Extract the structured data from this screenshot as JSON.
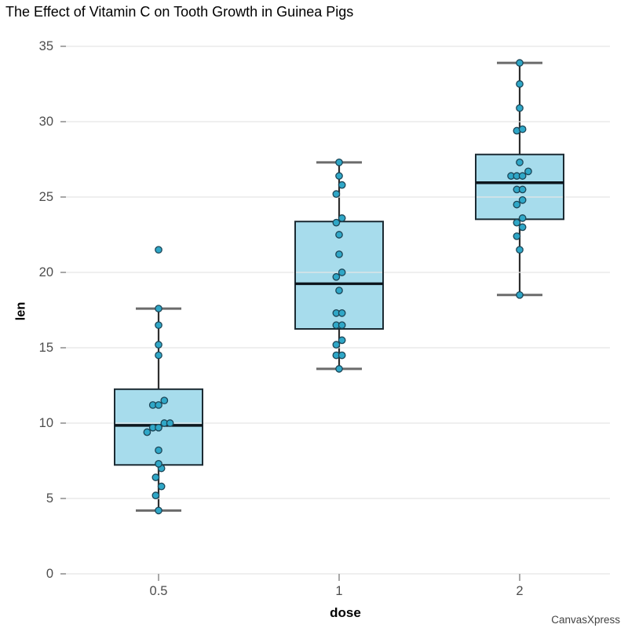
{
  "chart_data": {
    "type": "boxplot",
    "library": "CanvasXpress",
    "title": "The Effect of Vitamin C on Tooth Growth in Guinea Pigs",
    "xlabel": "dose",
    "ylabel": "len",
    "watermark": "CanvasXpress",
    "grid": true,
    "ylim": [
      0,
      35
    ],
    "y_ticks": [
      "0",
      "5",
      "10",
      "15",
      "20",
      "25",
      "30",
      "35"
    ],
    "x_categories": [
      "0.5",
      "1",
      "2"
    ],
    "groups": [
      {
        "label": "0.5",
        "points": [
          4.2,
          5.2,
          5.8,
          6.4,
          7.0,
          7.3,
          8.2,
          9.4,
          9.7,
          9.7,
          10.0,
          10.0,
          11.2,
          11.2,
          11.5,
          14.5,
          15.2,
          16.5,
          17.6,
          21.5
        ],
        "stats": {
          "whisker_low": 4.2,
          "q1": 7.225,
          "median": 9.85,
          "q3": 12.25,
          "whisker_high": 17.6,
          "outliers": [
            21.5
          ]
        }
      },
      {
        "label": "1",
        "points": [
          13.6,
          14.5,
          14.5,
          15.2,
          15.5,
          16.5,
          16.5,
          17.3,
          17.3,
          18.8,
          19.7,
          20.0,
          21.2,
          22.5,
          23.3,
          23.6,
          25.2,
          25.8,
          26.4,
          27.3
        ],
        "stats": {
          "whisker_low": 13.6,
          "q1": 16.25,
          "median": 19.25,
          "q3": 23.375,
          "whisker_high": 27.3,
          "outliers": []
        }
      },
      {
        "label": "2",
        "points": [
          18.5,
          21.5,
          22.4,
          23.0,
          23.3,
          23.6,
          24.5,
          24.8,
          25.5,
          25.5,
          26.4,
          26.4,
          26.4,
          26.7,
          27.3,
          29.4,
          29.5,
          30.9,
          32.5,
          33.9
        ],
        "stats": {
          "whisker_low": 18.5,
          "q1": 23.525,
          "median": 25.95,
          "q3": 27.825,
          "whisker_high": 33.9,
          "outliers": []
        }
      }
    ],
    "colors": {
      "background": "#ffffff",
      "box_fill": "#a7dcec",
      "box_border": "#1c2b33",
      "median_line": "#0d161d",
      "whisker_line": "#2e2e2e",
      "whisker_cap": "#6b6b6b",
      "point_fill": "#2fa7c7",
      "point_stroke": "#1c4556",
      "gridline": "#e5e5e5",
      "tick": "#939393",
      "tick_label": "#4d4d4d",
      "text": "#000000"
    }
  }
}
